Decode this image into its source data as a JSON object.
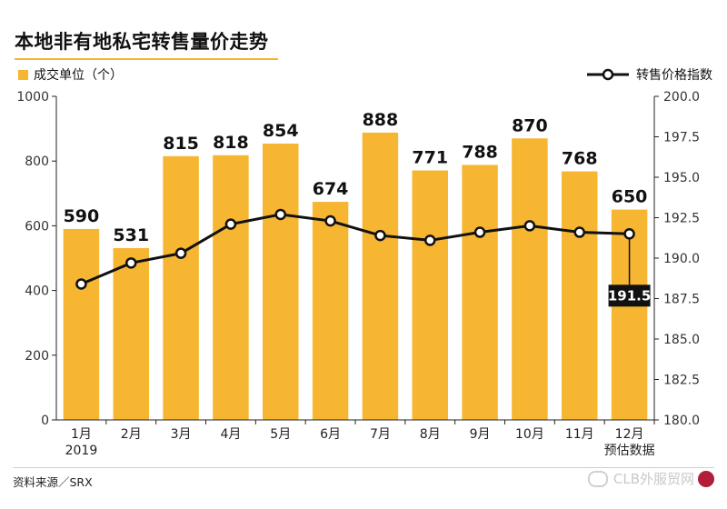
{
  "title": "本地非有地私宅转售量价走势",
  "legend": {
    "bars_label": "成交单位（个）",
    "line_label": "转售价格指数"
  },
  "source": "资料来源／SRX",
  "watermark": "CLB外服贸网",
  "colors": {
    "bar": "#f6b632",
    "line": "#111111",
    "callout_bg": "#111111",
    "callout_text": "#ffffff",
    "title_rule": "#f3b531"
  },
  "chart_data": {
    "type": "bar",
    "categories": [
      "1月",
      "2月",
      "3月",
      "4月",
      "5月",
      "6月",
      "7月",
      "8月",
      "9月",
      "10月",
      "11月",
      "12月"
    ],
    "category_sublabels": [
      "2019",
      "",
      "",
      "",
      "",
      "",
      "",
      "",
      "",
      "",
      "",
      "预估数据"
    ],
    "series": [
      {
        "name": "成交单位（个）",
        "type": "bar",
        "axis": "left",
        "values": [
          590,
          531,
          815,
          818,
          854,
          674,
          888,
          771,
          788,
          870,
          768,
          650
        ]
      },
      {
        "name": "转售价格指数",
        "type": "line",
        "axis": "right",
        "values": [
          188.4,
          189.7,
          190.3,
          192.1,
          192.7,
          192.3,
          191.4,
          191.1,
          191.6,
          192.0,
          191.6,
          191.5
        ]
      }
    ],
    "left_axis": {
      "ylim": [
        0,
        1000
      ],
      "ticks": [
        0,
        200,
        400,
        600,
        800,
        1000
      ],
      "tick_labels": [
        "0",
        "200",
        "400",
        "600",
        "800",
        "1000"
      ]
    },
    "right_axis": {
      "ylim": [
        180.0,
        200.0
      ],
      "ticks": [
        180.0,
        182.5,
        185.0,
        187.5,
        190.0,
        192.5,
        195.0,
        197.5,
        200.0
      ],
      "tick_labels": [
        "180.0",
        "182.5",
        "185.0",
        "187.5",
        "190.0",
        "192.5",
        "195.0",
        "197.5",
        "200.0"
      ]
    },
    "bar_labels": [
      "590",
      "531",
      "815",
      "818",
      "854",
      "674",
      "888",
      "771",
      "788",
      "870",
      "768",
      "650"
    ],
    "callout": {
      "index": 11,
      "label": "191.5"
    },
    "grid": false
  }
}
